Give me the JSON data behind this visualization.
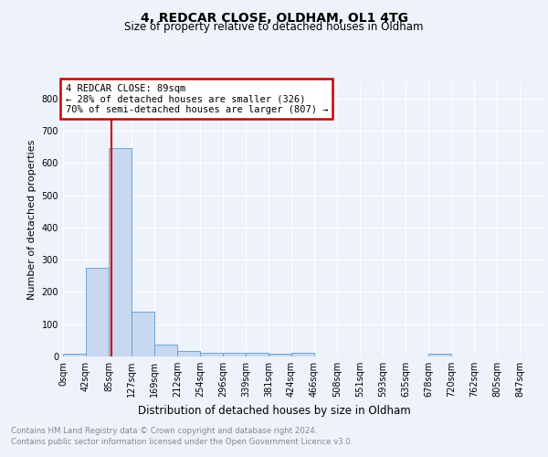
{
  "title": "4, REDCAR CLOSE, OLDHAM, OL1 4TG",
  "subtitle": "Size of property relative to detached houses in Oldham",
  "xlabel": "Distribution of detached houses by size in Oldham",
  "ylabel": "Number of detached properties",
  "bin_labels": [
    "0sqm",
    "42sqm",
    "85sqm",
    "127sqm",
    "169sqm",
    "212sqm",
    "254sqm",
    "296sqm",
    "339sqm",
    "381sqm",
    "424sqm",
    "466sqm",
    "508sqm",
    "551sqm",
    "593sqm",
    "635sqm",
    "678sqm",
    "720sqm",
    "762sqm",
    "805sqm",
    "847sqm"
  ],
  "bar_heights": [
    8,
    275,
    645,
    140,
    38,
    17,
    12,
    11,
    10,
    8,
    10,
    0,
    0,
    0,
    0,
    0,
    8,
    0,
    0,
    0,
    0
  ],
  "bar_color": "#c8d8f0",
  "bar_edgecolor": "#5b9bd5",
  "vline_color": "#cc0000",
  "property_line_label": "4 REDCAR CLOSE: 89sqm",
  "annotation_line1": "← 28% of detached houses are smaller (326)",
  "annotation_line2": "70% of semi-detached houses are larger (807) →",
  "annotation_box_color": "#ffffff",
  "annotation_box_edgecolor": "#cc0000",
  "footer_line1": "Contains HM Land Registry data © Crown copyright and database right 2024.",
  "footer_line2": "Contains public sector information licensed under the Open Government Licence v3.0.",
  "ylim": [
    0,
    850
  ],
  "yticks": [
    0,
    100,
    200,
    300,
    400,
    500,
    600,
    700,
    800
  ],
  "bin_width": 42,
  "background_color": "#eef2fb",
  "plot_bg_color": "#eef2fb"
}
